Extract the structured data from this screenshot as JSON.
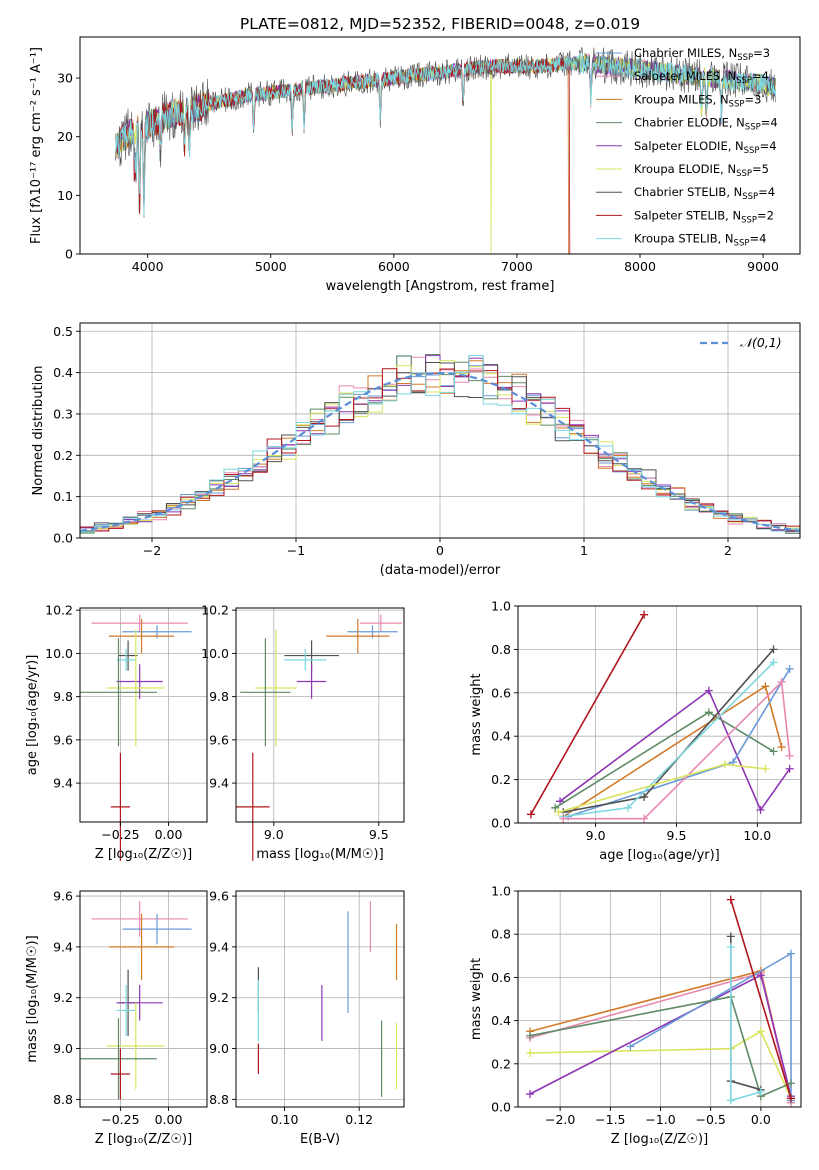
{
  "figure": {
    "title": "PLATE=0812, MJD=52352, FIBERID=0048, z=0.019"
  },
  "colors": {
    "cm": "#6b9bd8",
    "sm": "#e888b2",
    "km": "#d27a2a",
    "ce": "#5e8a66",
    "se": "#8e36b4",
    "ke": "#d9e45c",
    "cs": "#505050",
    "ss": "#b0161e",
    "ks": "#7ad8e0"
  },
  "models": [
    {
      "key": "cm",
      "label": "Chabrier MILES, N",
      "nssp": 3
    },
    {
      "key": "sm",
      "label": "Salpeter MILES, N",
      "nssp": 4
    },
    {
      "key": "km",
      "label": "Kroupa MILES, N",
      "nssp": 3
    },
    {
      "key": "ce",
      "label": "Chabrier ELODIE, N",
      "nssp": 4
    },
    {
      "key": "se",
      "label": "Salpeter ELODIE, N",
      "nssp": 4
    },
    {
      "key": "ke",
      "label": "Kroupa ELODIE, N",
      "nssp": 5
    },
    {
      "key": "cs",
      "label": "Chabrier STELIB, N",
      "nssp": 4
    },
    {
      "key": "ss",
      "label": "Salpeter STELIB, N",
      "nssp": 2
    },
    {
      "key": "ks",
      "label": "Kroupa STELIB, N",
      "nssp": 4
    }
  ],
  "chart_data": [
    {
      "id": "spectrum",
      "type": "line",
      "xlabel": "wavelength [Angstrom, rest frame]",
      "ylabel": "Flux [fλ10⁻¹⁷ erg cm⁻² s⁻¹ A⁻¹]",
      "xlim": [
        3450,
        9300
      ],
      "ylim": [
        0,
        37
      ],
      "xticks": [
        4000,
        5000,
        6000,
        7000,
        8000,
        9000
      ],
      "yticks": [
        0,
        10,
        20,
        30
      ],
      "continuum": {
        "x": [
          3740,
          3800,
          3900,
          4000,
          4100,
          4200,
          4400,
          4600,
          4800,
          5000,
          5200,
          5400,
          5600,
          5800,
          6000,
          6200,
          6400,
          6600,
          6800,
          7000,
          7200,
          7400,
          7600,
          7800,
          8000,
          8200,
          8400,
          8600,
          8800,
          9000,
          9100
        ],
        "y": [
          18,
          20,
          21,
          22,
          23,
          24,
          25,
          26,
          27,
          27.5,
          28,
          28.5,
          29,
          29.5,
          30,
          30.5,
          31,
          31.5,
          32,
          32,
          32,
          32.5,
          32.5,
          32,
          31.5,
          31,
          30.5,
          30,
          29.5,
          29,
          28.5
        ]
      },
      "dropouts": [
        {
          "key": "ke",
          "x": 3910
        },
        {
          "key": "ke",
          "x": 6790
        },
        {
          "key": "km",
          "x": 7420
        },
        {
          "key": "ss",
          "x": 7430
        }
      ],
      "legend": "upper right"
    },
    {
      "id": "residuals",
      "type": "histogram",
      "xlabel": "(data-model)/error",
      "ylabel": "Normed distribution",
      "xlim": [
        -2.5,
        2.5
      ],
      "ylim": [
        0,
        0.52
      ],
      "xticks": [
        -2,
        -1,
        0,
        1,
        2
      ],
      "yticks": [
        0.0,
        0.1,
        0.2,
        0.3,
        0.4,
        0.5
      ],
      "bin_width": 0.1,
      "reference": {
        "label": "𝒩(0,1)",
        "color": "#5b8fd8"
      }
    },
    {
      "id": "age_vs_Z",
      "type": "errorbar",
      "xlabel": "Z [log₁₀(Z/Z☉)]",
      "ylabel": "age  [log₁₀(age/yr)]",
      "xlim": [
        -0.46,
        0.2
      ],
      "ylim": [
        9.22,
        10.21
      ],
      "xticks": [
        -0.25,
        0.0
      ],
      "yticks": [
        9.4,
        9.6,
        9.8,
        10.0,
        10.2
      ],
      "points": [
        {
          "key": "sm",
          "x": -0.15,
          "y": 10.14,
          "xerr": 0.25,
          "yerr": 0.04
        },
        {
          "key": "ss",
          "x": -0.25,
          "y": 9.29,
          "xerr": 0.05,
          "yerr": 0.25
        },
        {
          "key": "cm",
          "x": -0.06,
          "y": 10.1,
          "xerr": 0.18,
          "yerr": 0.03
        },
        {
          "key": "km",
          "x": -0.14,
          "y": 10.08,
          "xerr": 0.17,
          "yerr": 0.08
        },
        {
          "key": "cs",
          "x": -0.21,
          "y": 9.99,
          "xerr": 0.05,
          "yerr": 0.07
        },
        {
          "key": "ks",
          "x": -0.22,
          "y": 9.97,
          "xerr": 0.05,
          "yerr": 0.05
        },
        {
          "key": "se",
          "x": -0.15,
          "y": 9.87,
          "xerr": 0.12,
          "yerr": 0.08
        },
        {
          "key": "ke",
          "x": -0.17,
          "y": 9.84,
          "xerr": 0.15,
          "yerr": 0.27
        },
        {
          "key": "ce",
          "x": -0.26,
          "y": 9.82,
          "xerr": 0.2,
          "yerr": 0.25
        }
      ]
    },
    {
      "id": "age_vs_mass",
      "type": "errorbar",
      "xlabel": "mass [log₁₀(M/M☉)]",
      "ylabel": "",
      "xlim": [
        8.82,
        9.62
      ],
      "ylim": [
        9.22,
        10.21
      ],
      "xticks": [
        9.0,
        9.5
      ],
      "yticks": [
        9.4,
        9.6,
        9.8,
        10.0,
        10.2
      ],
      "points": [
        {
          "key": "sm",
          "x": 9.51,
          "y": 10.14,
          "xerr": 0.1,
          "yerr": 0.04
        },
        {
          "key": "ss",
          "x": 8.9,
          "y": 9.29,
          "xerr": 0.08,
          "yerr": 0.25
        },
        {
          "key": "cm",
          "x": 9.47,
          "y": 10.1,
          "xerr": 0.12,
          "yerr": 0.03
        },
        {
          "key": "km",
          "x": 9.4,
          "y": 10.08,
          "xerr": 0.15,
          "yerr": 0.08
        },
        {
          "key": "cs",
          "x": 9.18,
          "y": 9.99,
          "xerr": 0.13,
          "yerr": 0.07
        },
        {
          "key": "ks",
          "x": 9.15,
          "y": 9.97,
          "xerr": 0.1,
          "yerr": 0.05
        },
        {
          "key": "se",
          "x": 9.18,
          "y": 9.87,
          "xerr": 0.07,
          "yerr": 0.08
        },
        {
          "key": "ke",
          "x": 9.01,
          "y": 9.84,
          "xerr": 0.1,
          "yerr": 0.27
        },
        {
          "key": "ce",
          "x": 8.96,
          "y": 9.82,
          "xerr": 0.12,
          "yerr": 0.25
        }
      ]
    },
    {
      "id": "weight_vs_age",
      "type": "line",
      "xlabel": "age  [log₁₀(age/yr)]",
      "ylabel": "mass weight",
      "xlim": [
        8.52,
        10.27
      ],
      "ylim": [
        0,
        1.0
      ],
      "xticks": [
        9.0,
        9.5,
        10.0
      ],
      "yticks": [
        0.0,
        0.2,
        0.4,
        0.6,
        0.8,
        1.0
      ],
      "series": [
        {
          "key": "ss",
          "x": [
            8.6,
            9.3
          ],
          "y": [
            0.04,
            0.96
          ]
        },
        {
          "key": "se",
          "x": [
            8.78,
            9.7,
            10.02,
            10.2
          ],
          "y": [
            0.1,
            0.61,
            0.06,
            0.25
          ]
        },
        {
          "key": "ce",
          "x": [
            8.75,
            9.7,
            10.1
          ],
          "y": [
            0.07,
            0.51,
            0.33
          ]
        },
        {
          "key": "km",
          "x": [
            8.8,
            10.05,
            10.15
          ],
          "y": [
            0.03,
            0.63,
            0.35
          ]
        },
        {
          "key": "cm",
          "x": [
            8.83,
            9.85,
            10.2
          ],
          "y": [
            0.03,
            0.28,
            0.71
          ]
        },
        {
          "key": "cs",
          "x": [
            8.8,
            9.3,
            10.1
          ],
          "y": [
            0.05,
            0.12,
            0.8
          ]
        },
        {
          "key": "ks",
          "x": [
            8.8,
            9.2,
            10.1
          ],
          "y": [
            0.03,
            0.07,
            0.74
          ]
        },
        {
          "key": "sm",
          "x": [
            8.8,
            9.3,
            10.15,
            10.2
          ],
          "y": [
            0.02,
            0.02,
            0.65,
            0.31
          ]
        },
        {
          "key": "ke",
          "x": [
            8.77,
            9.8,
            10.05
          ],
          "y": [
            0.05,
            0.27,
            0.25
          ]
        }
      ]
    },
    {
      "id": "mass_vs_Z",
      "type": "errorbar",
      "xlabel": "Z [log₁₀(Z/Z☉)]",
      "ylabel": "mass [log₁₀(M/M☉)]",
      "xlim": [
        -0.46,
        0.2
      ],
      "ylim": [
        8.77,
        9.62
      ],
      "xticks": [
        -0.25,
        0.0
      ],
      "yticks": [
        8.8,
        9.0,
        9.2,
        9.4,
        9.6
      ],
      "points": [
        {
          "key": "sm",
          "x": -0.15,
          "y": 9.51,
          "xerr": 0.25,
          "yerr": 0.07
        },
        {
          "key": "cm",
          "x": -0.06,
          "y": 9.47,
          "xerr": 0.18,
          "yerr": 0.06
        },
        {
          "key": "km",
          "x": -0.14,
          "y": 9.4,
          "xerr": 0.17,
          "yerr": 0.13
        },
        {
          "key": "cs",
          "x": -0.21,
          "y": 9.18,
          "xerr": 0.05,
          "yerr": 0.13
        },
        {
          "key": "se",
          "x": -0.15,
          "y": 9.18,
          "xerr": 0.12,
          "yerr": 0.07
        },
        {
          "key": "ks",
          "x": -0.22,
          "y": 9.15,
          "xerr": 0.05,
          "yerr": 0.1
        },
        {
          "key": "ke",
          "x": -0.17,
          "y": 9.01,
          "xerr": 0.15,
          "yerr": 0.17
        },
        {
          "key": "ce",
          "x": -0.26,
          "y": 8.96,
          "xerr": 0.2,
          "yerr": 0.16
        },
        {
          "key": "ss",
          "x": -0.25,
          "y": 8.9,
          "xerr": 0.05,
          "yerr": 0.1
        }
      ]
    },
    {
      "id": "mass_vs_EBV",
      "type": "errorbar",
      "xlabel": "E(B-V)",
      "ylabel": "",
      "xlim": [
        0.087,
        0.132
      ],
      "ylim": [
        8.77,
        9.62
      ],
      "xticks": [
        0.1,
        0.12
      ],
      "yticks": [
        8.8,
        9.0,
        9.2,
        9.4,
        9.6
      ],
      "points": [
        {
          "key": "sm",
          "x": 0.123,
          "y": 9.48,
          "xerr": 0.0,
          "yerr": 0.1
        },
        {
          "key": "cm",
          "x": 0.117,
          "y": 9.34,
          "xerr": 0.0,
          "yerr": 0.2
        },
        {
          "key": "km",
          "x": 0.13,
          "y": 9.38,
          "xerr": 0.0,
          "yerr": 0.11
        },
        {
          "key": "cs",
          "x": 0.093,
          "y": 9.23,
          "xerr": 0.0,
          "yerr": 0.09
        },
        {
          "key": "ks",
          "x": 0.093,
          "y": 9.15,
          "xerr": 0.0,
          "yerr": 0.12
        },
        {
          "key": "se",
          "x": 0.11,
          "y": 9.14,
          "xerr": 0.0,
          "yerr": 0.11
        },
        {
          "key": "ce",
          "x": 0.126,
          "y": 8.96,
          "xerr": 0.0,
          "yerr": 0.15
        },
        {
          "key": "ke",
          "x": 0.13,
          "y": 8.97,
          "xerr": 0.0,
          "yerr": 0.13
        },
        {
          "key": "ss",
          "x": 0.093,
          "y": 8.96,
          "xerr": 0.0,
          "yerr": 0.06
        }
      ]
    },
    {
      "id": "weight_vs_Z",
      "type": "line",
      "xlabel": "Z [log₁₀(Z/Z☉)]",
      "ylabel": "mass weight",
      "xlim": [
        -2.42,
        0.4
      ],
      "ylim": [
        0,
        1.0
      ],
      "xticks": [
        -2.0,
        -1.5,
        -1.0,
        -0.5,
        0.0
      ],
      "yticks": [
        0.0,
        0.2,
        0.4,
        0.6,
        0.8,
        1.0
      ],
      "series": [
        {
          "key": "km",
          "x": [
            -2.3,
            0.0,
            0.3
          ],
          "y": [
            0.35,
            0.63,
            0.03
          ]
        },
        {
          "key": "sm",
          "x": [
            -2.3,
            0.0,
            0.3
          ],
          "y": [
            0.32,
            0.62,
            0.02
          ]
        },
        {
          "key": "ke",
          "x": [
            -2.3,
            -0.3,
            0.0,
            0.3
          ],
          "y": [
            0.25,
            0.27,
            0.35,
            0.04
          ]
        },
        {
          "key": "se",
          "x": [
            -2.3,
            0.0,
            0.3
          ],
          "y": [
            0.06,
            0.61,
            0.05
          ]
        },
        {
          "key": "cm",
          "x": [
            -1.3,
            0.3,
            0.3
          ],
          "y": [
            0.28,
            0.71,
            0.03
          ]
        },
        {
          "key": "ce",
          "x": [
            -2.3,
            -0.3,
            0.0,
            0.3
          ],
          "y": [
            0.33,
            0.51,
            0.05,
            0.11
          ]
        },
        {
          "key": "ss",
          "x": [
            -0.3,
            0.3
          ],
          "y": [
            0.96,
            0.04
          ]
        },
        {
          "key": "cs",
          "x": [
            -0.3,
            -0.3,
            0.0
          ],
          "y": [
            0.79,
            0.12,
            0.08
          ]
        },
        {
          "key": "ks",
          "x": [
            -0.3,
            -0.3,
            0.0
          ],
          "y": [
            0.74,
            0.03,
            0.07
          ]
        }
      ]
    }
  ]
}
